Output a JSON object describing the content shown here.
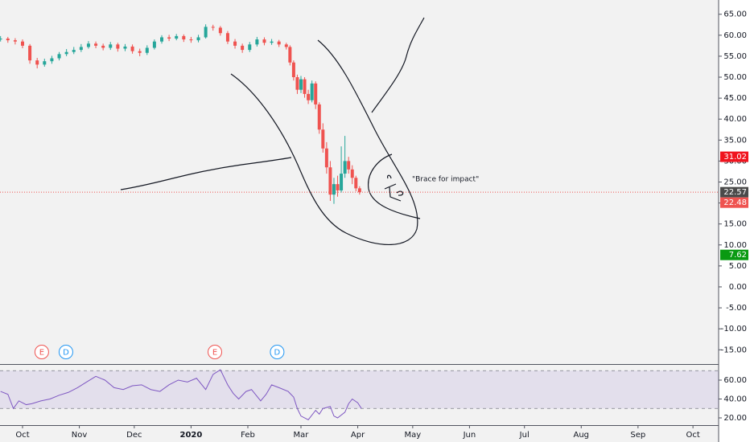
{
  "chart_data": [
    {
      "type": "candlestick",
      "x": [
        -12,
        -8,
        -4,
        0,
        4,
        8,
        12,
        16,
        20,
        24,
        28,
        32,
        36,
        40,
        44,
        48,
        52,
        56,
        60,
        64,
        68,
        72,
        76,
        80,
        84,
        88,
        92,
        96,
        100,
        104,
        108,
        112,
        116,
        120,
        124,
        128,
        132,
        136,
        140,
        144,
        146,
        148,
        150,
        152,
        154,
        156,
        158,
        160,
        162,
        164,
        166,
        168,
        170,
        172,
        174,
        176,
        178,
        180,
        182,
        184
      ],
      "open": [
        59.0,
        59.2,
        58.8,
        58.5,
        57.5,
        54.0,
        53.0,
        53.8,
        54.5,
        55.5,
        56.0,
        56.5,
        57.2,
        58.0,
        57.5,
        57.0,
        57.8,
        56.8,
        57.3,
        56.2,
        55.8,
        57.0,
        58.5,
        59.5,
        59.2,
        59.8,
        59.0,
        58.8,
        59.5,
        62.0,
        61.8,
        60.5,
        58.5,
        57.5,
        56.5,
        57.8,
        59.0,
        58.2,
        58.5,
        57.8,
        57.2,
        53.5,
        50.0,
        47.0,
        49.5,
        46.0,
        44.5,
        48.5,
        43.5,
        37.5,
        33.0,
        28.5,
        22.0,
        24.5,
        23.0,
        27.0,
        30.0,
        28.0,
        26.0,
        23.5
      ],
      "high": [
        59.8,
        59.6,
        59.3,
        59.0,
        57.9,
        54.6,
        54.4,
        55.1,
        56.0,
        56.7,
        57.2,
        57.9,
        58.6,
        58.5,
        58.0,
        58.4,
        58.2,
        57.9,
        57.8,
        56.8,
        57.6,
        59.0,
        60.0,
        60.1,
        60.3,
        60.2,
        59.6,
        60.1,
        62.6,
        62.5,
        62.2,
        61.0,
        59.1,
        58.0,
        58.4,
        59.6,
        59.5,
        59.1,
        58.9,
        58.2,
        57.6,
        54.0,
        50.6,
        50.3,
        50.0,
        47.0,
        49.2,
        49.0,
        44.0,
        39.0,
        34.5,
        30.0,
        26.0,
        26.5,
        33.5,
        36.0,
        31.0,
        29.0,
        26.5,
        24.0
      ],
      "low": [
        58.5,
        58.2,
        57.8,
        56.9,
        53.2,
        52.1,
        52.5,
        53.2,
        54.0,
        55.0,
        55.5,
        56.0,
        56.8,
        56.9,
        56.4,
        56.5,
        56.1,
        56.2,
        55.6,
        55.0,
        55.3,
        56.6,
        58.0,
        58.6,
        58.8,
        58.4,
        58.2,
        58.3,
        59.2,
        61.1,
        59.9,
        57.9,
        56.8,
        55.8,
        56.0,
        57.3,
        57.6,
        57.7,
        57.2,
        56.6,
        52.8,
        49.2,
        46.0,
        46.2,
        45.1,
        43.6,
        44.0,
        42.4,
        36.5,
        32.0,
        27.0,
        20.5,
        19.8,
        21.5,
        22.5,
        26.0,
        27.0,
        24.5,
        22.8,
        22.0
      ],
      "close": [
        59.2,
        58.8,
        58.5,
        57.5,
        54.0,
        53.0,
        53.8,
        54.5,
        55.5,
        56.0,
        56.5,
        57.2,
        58.0,
        57.5,
        57.0,
        57.8,
        56.8,
        57.3,
        56.2,
        55.8,
        57.0,
        58.5,
        59.5,
        59.2,
        59.8,
        59.0,
        58.8,
        59.5,
        62.0,
        61.8,
        60.5,
        58.5,
        57.5,
        56.5,
        57.8,
        59.0,
        58.2,
        58.5,
        57.8,
        57.2,
        53.5,
        50.0,
        47.0,
        49.5,
        46.0,
        44.5,
        48.5,
        43.5,
        37.5,
        33.0,
        28.5,
        22.0,
        24.5,
        23.0,
        27.0,
        30.0,
        28.0,
        26.0,
        23.5,
        22.57
      ],
      "up_color": "#26a69a",
      "down_color": "#ef5350",
      "ylim": [
        -18.4,
        68.4
      ],
      "yticks": [
        {
          "value": 65,
          "label": "65.00"
        },
        {
          "value": 60,
          "label": "60.00"
        },
        {
          "value": 55,
          "label": "55.00"
        },
        {
          "value": 50,
          "label": "50.00"
        },
        {
          "value": 45,
          "label": "45.00"
        },
        {
          "value": 40,
          "label": "40.00"
        },
        {
          "value": 35,
          "label": "35.00"
        },
        {
          "value": 30,
          "label": "30.00"
        },
        {
          "value": 25,
          "label": "25.00"
        },
        {
          "value": 20,
          "label": "20.00"
        },
        {
          "value": 15,
          "label": "15.00"
        },
        {
          "value": 10,
          "label": "10.00"
        },
        {
          "value": 5,
          "label": "5.00"
        },
        {
          "value": 0,
          "label": "0.00"
        },
        {
          "value": -5,
          "label": "-5.00"
        },
        {
          "value": -10,
          "label": "-10.00"
        },
        {
          "value": -15,
          "label": "-15.00"
        }
      ],
      "price_line": {
        "value": 22.57,
        "color": "#ef5350"
      },
      "price_labels": [
        {
          "value": 31.02,
          "label": "31.02",
          "color": "#f0141e"
        },
        {
          "value": 22.57,
          "label": "22.57",
          "color": "#4a4a4a"
        },
        {
          "value": 22.48,
          "label": "22.48",
          "color": "#ef5350"
        },
        {
          "value": 7.62,
          "label": "7.62",
          "color": "#0a9a12"
        }
      ],
      "events": [
        {
          "label": "E",
          "x": 10.5,
          "color": "#ef5350"
        },
        {
          "label": "D",
          "x": 23.7,
          "color": "#2196f3"
        },
        {
          "label": "E",
          "x": 105,
          "color": "#ef5350"
        },
        {
          "label": "D",
          "x": 139,
          "color": "#2196f3"
        }
      ],
      "annotation": "\"Brace for impact\""
    },
    {
      "type": "line",
      "x": [
        -12,
        -8,
        -5,
        -2,
        2,
        5,
        10,
        15,
        20,
        25,
        30,
        35,
        40,
        45,
        50,
        55,
        60,
        65,
        70,
        75,
        80,
        85,
        90,
        95,
        100,
        104,
        108,
        112,
        115,
        118,
        122,
        125,
        130,
        133,
        136,
        140,
        145,
        148,
        150,
        152,
        156,
        160,
        162,
        164,
        168,
        170,
        172,
        176,
        178,
        180,
        183,
        185
      ],
      "values": [
        48,
        45,
        30,
        38,
        34,
        35,
        38,
        40,
        44,
        47,
        52,
        58,
        64,
        60,
        52,
        50,
        54,
        55,
        50,
        48,
        55,
        60,
        58,
        62,
        50,
        66,
        71,
        55,
        46,
        40,
        48,
        50,
        38,
        45,
        55,
        52,
        48,
        42,
        30,
        22,
        18,
        28,
        24,
        30,
        32,
        22,
        20,
        26,
        35,
        40,
        36,
        30
      ],
      "color": "#7e57c2",
      "band": [
        30,
        70
      ],
      "band_color": "#7e57c2",
      "ylim": [
        13.2,
        75.3
      ],
      "yticks": [
        {
          "value": 60,
          "label": "60.00"
        },
        {
          "value": 40,
          "label": "40.00"
        },
        {
          "value": 20,
          "label": "20.00"
        }
      ],
      "xlim": [
        -12.3,
        380
      ],
      "xticks": [
        {
          "value": 0,
          "label": "Oct"
        },
        {
          "value": 31,
          "label": "Nov"
        },
        {
          "value": 61,
          "label": "Dec"
        },
        {
          "value": 92,
          "label": "2020"
        },
        {
          "value": 123,
          "label": "Feb"
        },
        {
          "value": 152,
          "label": "Mar"
        },
        {
          "value": 183,
          "label": "Apr"
        },
        {
          "value": 213,
          "label": "May"
        },
        {
          "value": 244,
          "label": "Jun"
        },
        {
          "value": 274,
          "label": "Jul"
        },
        {
          "value": 305,
          "label": "Aug"
        },
        {
          "value": 336,
          "label": "Sep"
        },
        {
          "value": 366,
          "label": "Oct"
        }
      ]
    }
  ]
}
